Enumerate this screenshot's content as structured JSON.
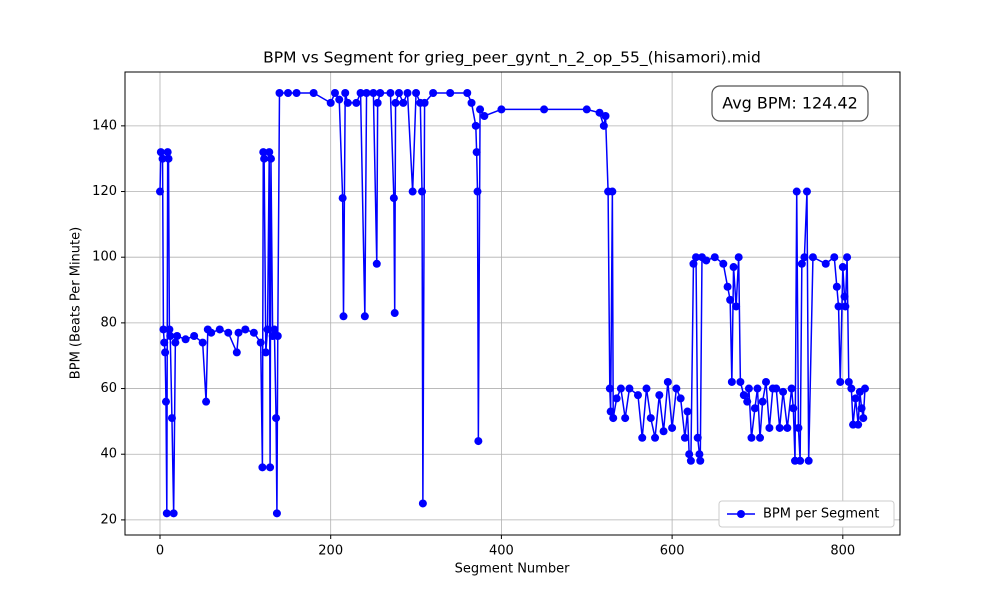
{
  "chart_data": {
    "type": "line",
    "title": "BPM vs Segment for grieg_peer_gynt_n_2_op_55_(hisamori).mid",
    "x_label": "Segment Number",
    "y_label": "BPM (Beats Per Minute)",
    "annotation": "Avg BPM: 124.42",
    "xlim": [
      -41,
      867
    ],
    "ylim": [
      15.4,
      156.4
    ],
    "xticks": [
      0,
      200,
      400,
      600,
      800
    ],
    "yticks": [
      20,
      40,
      60,
      80,
      100,
      120,
      140
    ],
    "grid": true,
    "legend": "lower right",
    "series": [
      {
        "name": "BPM per Segment",
        "color": "#0000ff",
        "x": [
          0,
          1,
          3,
          4,
          5,
          6,
          7,
          8,
          9,
          10,
          11,
          12,
          14,
          16,
          18,
          20,
          30,
          40,
          50,
          54,
          56,
          60,
          70,
          80,
          90,
          92,
          100,
          110,
          118,
          120,
          121,
          122,
          124,
          126,
          128,
          129,
          130,
          132,
          134,
          136,
          137,
          138,
          140,
          150,
          160,
          180,
          200,
          205,
          210,
          214,
          215,
          217,
          220,
          230,
          235,
          240,
          242,
          250,
          254,
          255,
          258,
          270,
          274,
          275,
          276,
          280,
          285,
          290,
          296,
          300,
          305,
          307,
          308,
          310,
          320,
          340,
          360,
          365,
          370,
          371,
          372,
          373,
          375,
          380,
          400,
          450,
          500,
          515,
          520,
          522,
          525,
          527,
          528,
          530,
          531,
          535,
          540,
          545,
          550,
          560,
          565,
          570,
          575,
          580,
          585,
          590,
          595,
          600,
          605,
          610,
          615,
          618,
          620,
          622,
          625,
          628,
          630,
          632,
          633,
          635,
          640,
          650,
          660,
          665,
          668,
          670,
          672,
          675,
          678,
          680,
          684,
          688,
          690,
          693,
          697,
          700,
          703,
          706,
          710,
          714,
          718,
          722,
          726,
          730,
          735,
          740,
          742,
          744,
          746,
          748,
          750,
          752,
          755,
          758,
          760,
          765,
          780,
          790,
          793,
          795,
          797,
          800,
          802,
          803,
          805,
          807,
          810,
          812,
          815,
          818,
          820,
          822,
          824,
          826
        ],
        "values": [
          120,
          132,
          130,
          78,
          74,
          71,
          56,
          22,
          132,
          130,
          78,
          76,
          51,
          22,
          74,
          76,
          75,
          76,
          74,
          56,
          78,
          77,
          78,
          77,
          71,
          77,
          78,
          77,
          74,
          36,
          132,
          130,
          71,
          78,
          132,
          36,
          130,
          76,
          78,
          51,
          22,
          76,
          150,
          150,
          150,
          150,
          147,
          150,
          148,
          118,
          82,
          150,
          147,
          147,
          150,
          82,
          150,
          150,
          98,
          147,
          150,
          150,
          118,
          83,
          147,
          150,
          147,
          150,
          120,
          150,
          147,
          120,
          25,
          147,
          150,
          150,
          150,
          147,
          140,
          132,
          120,
          44,
          145,
          143,
          145,
          145,
          145,
          144,
          140,
          143,
          120,
          60,
          53,
          120,
          51,
          57,
          60,
          51,
          60,
          58,
          45,
          60,
          51,
          45,
          58,
          47,
          62,
          48,
          60,
          57,
          45,
          53,
          40,
          38,
          98,
          100,
          45,
          40,
          38,
          100,
          99,
          100,
          98,
          91,
          87,
          62,
          97,
          85,
          100,
          62,
          58,
          56,
          60,
          45,
          54,
          60,
          45,
          56,
          62,
          48,
          60,
          60,
          48,
          59,
          48,
          60,
          54,
          38,
          120,
          48,
          38,
          98,
          100,
          120,
          38,
          100,
          98,
          100,
          91,
          85,
          62,
          97,
          88,
          85,
          100,
          62,
          60,
          49,
          57,
          49,
          59,
          54,
          51,
          60
        ]
      }
    ]
  }
}
